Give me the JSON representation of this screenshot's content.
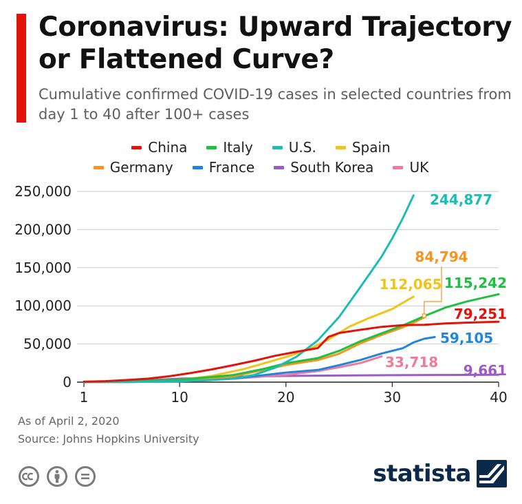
{
  "header": {
    "title": "Coronavirus: Upward Trajectory or Flattened Curve?",
    "subtitle": "Cumulative confirmed COVID-19 cases in selected countries from day 1 to 40 after 100+ cases",
    "accent_color": "#e3120b"
  },
  "legend": {
    "row1": [
      {
        "label": "China",
        "color": "#e3120b"
      },
      {
        "label": "Italy",
        "color": "#1ec042"
      },
      {
        "label": "U.S.",
        "color": "#1cbcb6"
      },
      {
        "label": "Spain",
        "color": "#f0c419"
      }
    ],
    "row2": [
      {
        "label": "Germany",
        "color": "#f7931e"
      },
      {
        "label": "France",
        "color": "#1f86de"
      },
      {
        "label": "South Korea",
        "color": "#9b59c9"
      },
      {
        "label": "UK",
        "color": "#f07a9b"
      }
    ]
  },
  "chart_data": {
    "type": "line",
    "title": "Coronavirus: Upward Trajectory or Flattened Curve?",
    "xlabel": "",
    "ylabel": "",
    "xlim": [
      1,
      40
    ],
    "ylim": [
      0,
      250000
    ],
    "x_ticks": [
      1,
      10,
      20,
      30,
      40
    ],
    "x_tick_labels": [
      "1",
      "10",
      "20",
      "30",
      "40"
    ],
    "y_ticks": [
      0,
      50000,
      100000,
      150000,
      200000,
      250000
    ],
    "y_tick_labels": [
      "0",
      "50,000",
      "100,000",
      "150,000",
      "200,000",
      "250,000"
    ],
    "grid": "horizontal",
    "series": [
      {
        "name": "South Korea",
        "color": "#9b59c9",
        "end_label": "9,661",
        "x": [
          1,
          5,
          10,
          15,
          20,
          25,
          30,
          35,
          40
        ],
        "y": [
          200,
          1200,
          4500,
          7100,
          8100,
          8700,
          9100,
          9400,
          9661
        ]
      },
      {
        "name": "UK",
        "color": "#f07a9b",
        "end_label": "33,718",
        "x": [
          1,
          5,
          10,
          15,
          20,
          23,
          25,
          27,
          29
        ],
        "y": [
          100,
          300,
          1300,
          4500,
          9500,
          14500,
          19500,
          25000,
          33718
        ]
      },
      {
        "name": "France",
        "color": "#1f86de",
        "end_label": "59,105",
        "x": [
          1,
          5,
          10,
          15,
          20,
          23,
          25,
          27,
          29,
          31,
          32,
          33,
          34
        ],
        "y": [
          100,
          200,
          1200,
          4500,
          12500,
          16000,
          22300,
          29100,
          37500,
          44500,
          52100,
          56900,
          59105
        ]
      },
      {
        "name": "Germany",
        "color": "#f7931e",
        "end_label": "84,794",
        "x": [
          1,
          5,
          10,
          15,
          20,
          23,
          25,
          27,
          29,
          31,
          32,
          33
        ],
        "y": [
          100,
          300,
          1500,
          7300,
          22400,
          29000,
          37300,
          50800,
          61900,
          71800,
          77900,
          84794
        ]
      },
      {
        "name": "Spain",
        "color": "#f0c419",
        "end_label": "112,065",
        "x": [
          1,
          5,
          10,
          13,
          16,
          18,
          20,
          22,
          24,
          26,
          28,
          30,
          32
        ],
        "y": [
          100,
          400,
          3000,
          8000,
          17000,
          24900,
          33000,
          42000,
          56000,
          73000,
          85000,
          95900,
          112065
        ]
      },
      {
        "name": "Italy",
        "color": "#1ec042",
        "end_label": "115,242",
        "x": [
          1,
          5,
          10,
          15,
          18,
          20,
          23,
          25,
          27,
          29,
          31,
          33,
          35,
          37,
          40
        ],
        "y": [
          100,
          1000,
          3100,
          9200,
          17700,
          24700,
          31500,
          41000,
          53600,
          63900,
          74400,
          86500,
          97700,
          105700,
          115242
        ]
      },
      {
        "name": "U.S.",
        "color": "#1cbcb6",
        "end_label": "244,877",
        "x": [
          1,
          5,
          10,
          13,
          15,
          17,
          19,
          21,
          23,
          25,
          27,
          29,
          30,
          31,
          32
        ],
        "y": [
          100,
          200,
          1000,
          2700,
          4600,
          9400,
          19000,
          33300,
          54900,
          85400,
          124600,
          164600,
          188500,
          215000,
          244877
        ]
      },
      {
        "name": "China",
        "color": "#e3120b",
        "end_label": "79,251",
        "x": [
          1,
          3,
          5,
          7,
          9,
          11,
          13,
          15,
          17,
          19,
          21,
          23,
          24,
          25,
          27,
          29,
          31,
          33,
          35,
          37,
          40
        ],
        "y": [
          500,
          1300,
          2700,
          4500,
          7700,
          11800,
          16600,
          22100,
          28000,
          34600,
          39800,
          44700,
          59300,
          64400,
          68600,
          72500,
          74600,
          75200,
          76900,
          78000,
          79251
        ]
      }
    ]
  },
  "footer": {
    "as_of": "As of April 2, 2020",
    "source": "Source: Johns Hopkins University",
    "logo_text": "statista",
    "logo_color": "#0b2a4a"
  }
}
